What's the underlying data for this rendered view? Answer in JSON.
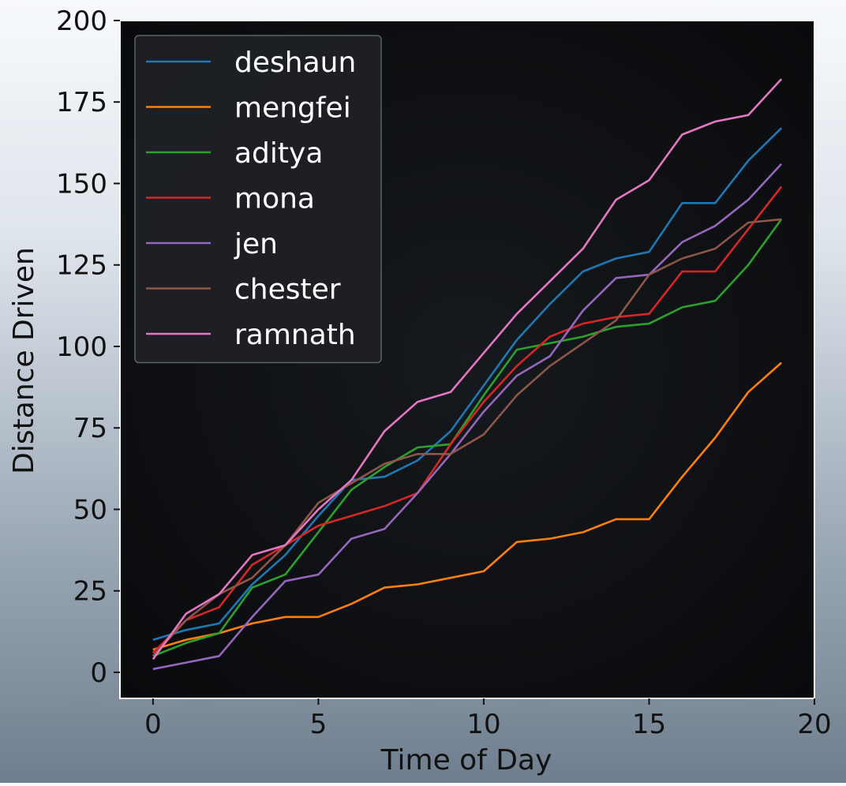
{
  "chart_data": {
    "type": "line",
    "title": "",
    "xlabel": "Time of Day",
    "ylabel": "Distance Driven",
    "xlim": [
      -1,
      20
    ],
    "ylim": [
      -8,
      200
    ],
    "xticks": [
      0,
      5,
      10,
      15,
      20
    ],
    "yticks": [
      0,
      25,
      50,
      75,
      100,
      125,
      150,
      175,
      200
    ],
    "grid": false,
    "legend_position": "top-left",
    "x": [
      0,
      1,
      2,
      3,
      4,
      5,
      6,
      7,
      8,
      9,
      10,
      11,
      12,
      13,
      14,
      15,
      16,
      17,
      18,
      19
    ],
    "series": [
      {
        "name": "deshaun",
        "color": "#1f77b4",
        "values": [
          10,
          13,
          15,
          27,
          36,
          48,
          59,
          60,
          65,
          74,
          88,
          102,
          113,
          123,
          127,
          129,
          144,
          144,
          157,
          167
        ]
      },
      {
        "name": "mengfei",
        "color": "#ff7f0e",
        "values": [
          7,
          10,
          12,
          15,
          17,
          17,
          21,
          26,
          27,
          29,
          31,
          40,
          41,
          43,
          47,
          47,
          60,
          72,
          86,
          95
        ]
      },
      {
        "name": "aditya",
        "color": "#2ca02c",
        "values": [
          5,
          9,
          12,
          26,
          30,
          43,
          56,
          63,
          69,
          70,
          85,
          99,
          101,
          103,
          106,
          107,
          112,
          114,
          125,
          139
        ]
      },
      {
        "name": "mona",
        "color": "#d62728",
        "values": [
          6,
          16,
          20,
          33,
          39,
          45,
          48,
          51,
          55,
          70,
          83,
          94,
          103,
          107,
          109,
          110,
          123,
          123,
          136,
          149
        ]
      },
      {
        "name": "jen",
        "color": "#9467bd",
        "values": [
          1,
          3,
          5,
          17,
          28,
          30,
          41,
          44,
          55,
          67,
          80,
          91,
          97,
          111,
          121,
          122,
          132,
          137,
          145,
          156
        ]
      },
      {
        "name": "chester",
        "color": "#8c564b",
        "values": [
          5,
          16,
          24,
          29,
          39,
          52,
          58,
          64,
          67,
          67,
          73,
          85,
          94,
          101,
          108,
          122,
          127,
          130,
          138,
          139
        ]
      },
      {
        "name": "ramnath",
        "color": "#e377c2",
        "values": [
          4,
          18,
          24,
          36,
          39,
          50,
          59,
          74,
          83,
          86,
          98,
          110,
          120,
          130,
          145,
          151,
          165,
          169,
          171,
          182
        ]
      }
    ]
  }
}
